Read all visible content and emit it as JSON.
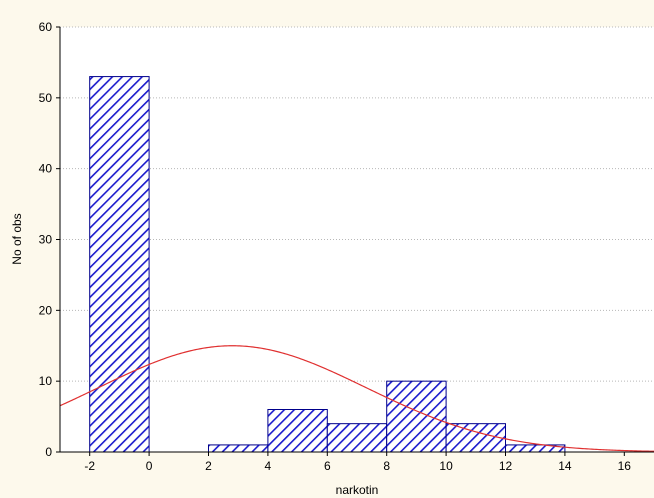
{
  "chart_data": {
    "type": "bar",
    "subtype": "histogram",
    "title": "",
    "xlabel": "narkotin",
    "ylabel": "No of obs",
    "xlim": [
      -3,
      17
    ],
    "ylim": [
      0,
      60
    ],
    "xticks": [
      -2,
      0,
      2,
      4,
      6,
      8,
      10,
      12,
      14,
      16
    ],
    "yticks": [
      0,
      10,
      20,
      30,
      40,
      50,
      60
    ],
    "bins": [
      {
        "x0": -2,
        "x1": 0,
        "value": 53
      },
      {
        "x0": 0,
        "x1": 2,
        "value": 0
      },
      {
        "x0": 2,
        "x1": 4,
        "value": 1
      },
      {
        "x0": 4,
        "x1": 6,
        "value": 6
      },
      {
        "x0": 6,
        "x1": 8,
        "value": 4
      },
      {
        "x0": 8,
        "x1": 10,
        "value": 10
      },
      {
        "x0": 10,
        "x1": 12,
        "value": 4
      },
      {
        "x0": 12,
        "x1": 14,
        "value": 1
      }
    ],
    "fit_curve": {
      "type": "normal",
      "peak_x": 2.8,
      "peak_y": 15,
      "sigma": 4.5,
      "color": "#e03030"
    },
    "grid": "horizontal-dotted",
    "bar_fill": "diagonal-hatch",
    "bar_color": "#1a1acc",
    "background": "#fdf9ec",
    "plot_background": "#ffffff"
  }
}
